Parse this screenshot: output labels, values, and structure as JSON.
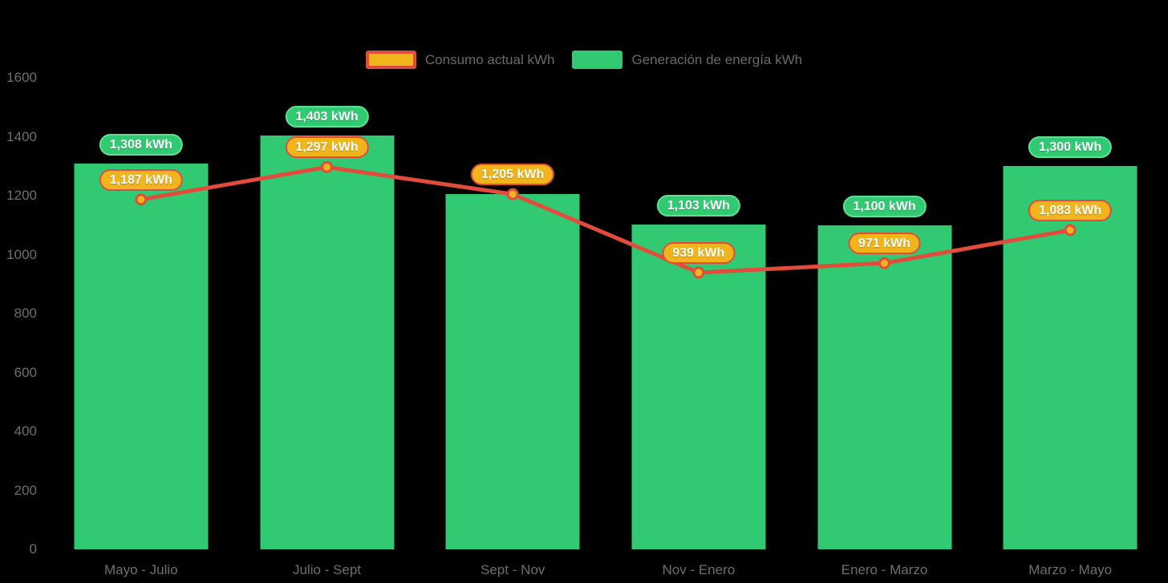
{
  "colors": {
    "background": "#000000",
    "bar_green": "#32c973",
    "bar_badge_bg": "#32c973",
    "bar_badge_border": "#5fe093",
    "line_red": "#e24c3c",
    "marker_fill": "#f0b41c",
    "line_badge_bg": "#f0b41c",
    "line_badge_border": "#e24c3c",
    "axis_text": "#6f6f6f",
    "legend_text": "#6a6a6a",
    "badge_text": "#ffffff"
  },
  "legend": {
    "items": [
      {
        "label": "Consumo actual kWh",
        "swatch_fill": "#f0b41c",
        "swatch_border": "#e24c3c",
        "series": "line"
      },
      {
        "label": "Generación de energía kWh",
        "swatch_fill": "#32c973",
        "swatch_border": null,
        "series": "bar"
      }
    ]
  },
  "chart_data": {
    "type": "bar",
    "subtype": "bar-line-combo",
    "title": "",
    "xlabel": "",
    "ylabel": "",
    "categories": [
      "Mayo - Julio",
      "Julio - Sept",
      "Sept - Nov",
      "Nov - Enero",
      "Enero - Marzo",
      "Marzo - Mayo"
    ],
    "series": [
      {
        "name": "Generación de energía kWh",
        "type": "bar",
        "color": "#32c973",
        "values": [
          1308,
          1403,
          1205,
          1103,
          1100,
          1300
        ],
        "labels": [
          "1,308 kWh",
          "1,403 kWh",
          null,
          "1,103 kWh",
          "1,100 kWh",
          "1,300 kWh"
        ]
      },
      {
        "name": "Consumo actual kWh",
        "type": "line",
        "color": "#e24c3c",
        "marker_fill": "#f0b41c",
        "values": [
          1187,
          1297,
          1205,
          939,
          971,
          1083
        ],
        "labels": [
          "1,187 kWh",
          "1,297 kWh",
          "1,205 kWh",
          "939 kWh",
          "971 kWh",
          "1,083 kWh"
        ]
      }
    ],
    "yaxis": {
      "min": 0,
      "max": 1600,
      "step": 200,
      "tick_labels": [
        "0",
        "200",
        "400",
        "600",
        "800",
        "1000",
        "1200",
        "1400",
        "1600"
      ]
    },
    "grid": false,
    "legend_position": "top-center"
  }
}
